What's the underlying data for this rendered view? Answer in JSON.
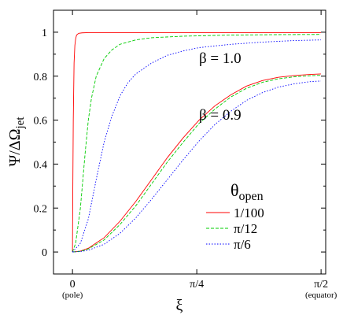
{
  "chart_data": {
    "type": "line",
    "ylabel_main": "Ψ/ΔΩ",
    "ylabel_sub": "jet",
    "xlabel": "ξ",
    "xlim": [
      -0.12,
      1.6
    ],
    "ylim": [
      -0.1,
      1.1
    ],
    "x_ticks": [
      {
        "value": 0,
        "label": "0",
        "sublabel": "(pole)"
      },
      {
        "value": 0.7854,
        "label": "π/4",
        "sublabel": ""
      },
      {
        "value": 1.5708,
        "label": "π/2",
        "sublabel": "(equator)"
      }
    ],
    "y_ticks": [
      {
        "value": 0,
        "label": "0"
      },
      {
        "value": 0.2,
        "label": "0.2"
      },
      {
        "value": 0.4,
        "label": "0.4"
      },
      {
        "value": 0.6,
        "label": "0.6"
      },
      {
        "value": 0.8,
        "label": "0.8"
      },
      {
        "value": 1,
        "label": "1"
      }
    ],
    "annotations": [
      {
        "text": "β = 1.0"
      },
      {
        "text": "β = 0.9"
      }
    ],
    "legend": {
      "title_main": "θ",
      "title_sub": "open",
      "placement": "lower-right",
      "entries": [
        {
          "label": "1/100",
          "color": "#ff0000",
          "dash": "solid"
        },
        {
          "label": "π/12",
          "color": "#00cc00",
          "dash": "dashed"
        },
        {
          "label": "π/6",
          "color": "#0000ff",
          "dash": "dotted"
        }
      ]
    },
    "series": [
      {
        "legend_index": 0,
        "color": "#ff0000",
        "dash": "solid",
        "x": [
          0,
          0.002,
          0.005,
          0.01,
          0.015,
          0.02,
          0.025,
          0.03,
          0.04,
          0.06,
          0.1,
          0.3,
          0.6,
          1.0,
          1.57
        ],
        "y": [
          0,
          0.28,
          0.6,
          0.86,
          0.94,
          0.97,
          0.985,
          0.99,
          0.995,
          0.997,
          0.998,
          0.998,
          0.998,
          0.998,
          0.998
        ]
      },
      {
        "legend_index": 1,
        "color": "#00cc00",
        "dash": "dashed",
        "x": [
          0,
          0.02,
          0.05,
          0.08,
          0.1,
          0.12,
          0.15,
          0.2,
          0.25,
          0.3,
          0.4,
          0.5,
          0.7,
          1.0,
          1.3,
          1.57
        ],
        "y": [
          0,
          0.04,
          0.2,
          0.45,
          0.6,
          0.7,
          0.8,
          0.88,
          0.92,
          0.945,
          0.965,
          0.975,
          0.982,
          0.987,
          0.989,
          0.99
        ]
      },
      {
        "legend_index": 2,
        "color": "#0000ff",
        "dash": "dotted",
        "x": [
          0,
          0.05,
          0.1,
          0.15,
          0.2,
          0.25,
          0.3,
          0.35,
          0.4,
          0.5,
          0.6,
          0.7,
          0.8,
          1.0,
          1.2,
          1.4,
          1.57
        ],
        "y": [
          0,
          0.04,
          0.15,
          0.33,
          0.5,
          0.62,
          0.71,
          0.77,
          0.81,
          0.86,
          0.895,
          0.915,
          0.93,
          0.945,
          0.955,
          0.962,
          0.965
        ]
      },
      {
        "legend_index": 0,
        "color": "#ff0000",
        "dash": "solid",
        "x": [
          0,
          0.05,
          0.1,
          0.2,
          0.3,
          0.4,
          0.5,
          0.6,
          0.7,
          0.8,
          0.9,
          1.0,
          1.1,
          1.2,
          1.3,
          1.4,
          1.5,
          1.57
        ],
        "y": [
          0,
          0.004,
          0.017,
          0.065,
          0.14,
          0.23,
          0.33,
          0.43,
          0.52,
          0.6,
          0.665,
          0.715,
          0.755,
          0.78,
          0.795,
          0.803,
          0.808,
          0.81
        ]
      },
      {
        "legend_index": 1,
        "color": "#00cc00",
        "dash": "dashed",
        "x": [
          0,
          0.05,
          0.1,
          0.2,
          0.3,
          0.4,
          0.5,
          0.6,
          0.7,
          0.8,
          0.9,
          1.0,
          1.1,
          1.2,
          1.3,
          1.4,
          1.5,
          1.57
        ],
        "y": [
          0,
          0.003,
          0.014,
          0.055,
          0.125,
          0.21,
          0.31,
          0.41,
          0.5,
          0.585,
          0.65,
          0.705,
          0.745,
          0.772,
          0.788,
          0.797,
          0.802,
          0.804
        ]
      },
      {
        "legend_index": 2,
        "color": "#0000ff",
        "dash": "dotted",
        "x": [
          0,
          0.05,
          0.1,
          0.2,
          0.3,
          0.4,
          0.5,
          0.6,
          0.7,
          0.8,
          0.9,
          1.0,
          1.1,
          1.2,
          1.3,
          1.4,
          1.5,
          1.57
        ],
        "y": [
          0,
          0.002,
          0.008,
          0.035,
          0.085,
          0.155,
          0.24,
          0.33,
          0.42,
          0.505,
          0.58,
          0.64,
          0.69,
          0.725,
          0.75,
          0.765,
          0.775,
          0.778
        ]
      }
    ]
  }
}
